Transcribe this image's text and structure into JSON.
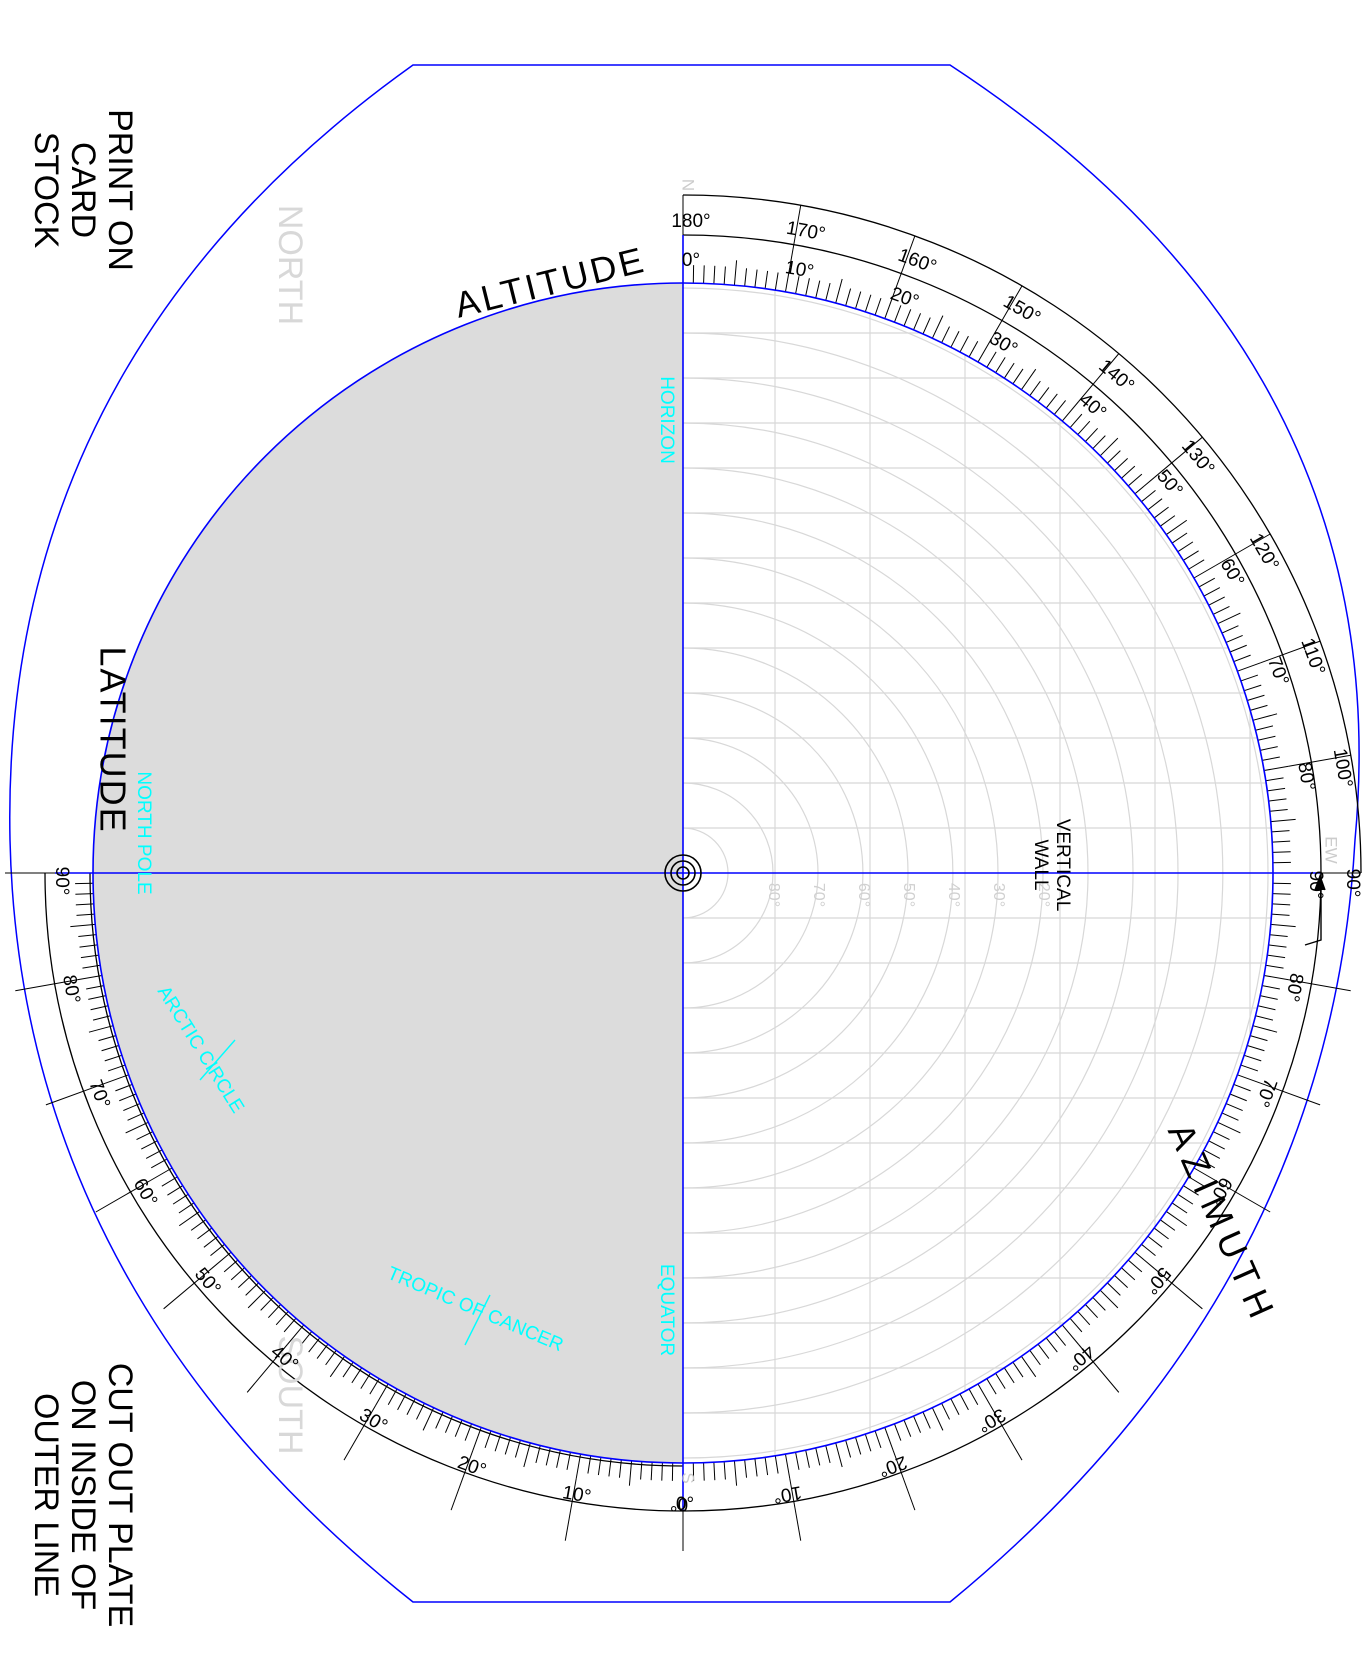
{
  "notes": {
    "print": [
      "PRINT ON",
      "CARD",
      "STOCK"
    ],
    "cut": [
      "CUT OUT PLATE",
      "ON INSIDE OF",
      "OUTER LINE"
    ]
  },
  "labels": {
    "north": "NORTH",
    "south": "SOUTH",
    "altitude": "ALTITUDE",
    "latitude": "LATITUDE",
    "azimuth": "AZIMUTH",
    "vertical_wall": [
      "VERTICAL",
      "WALL"
    ],
    "horizon": "HORIZON",
    "equator": "EQUATOR",
    "north_pole": "NORTH POLE",
    "arctic_circle": "ARCTIC CIRCLE",
    "tropic_of_cancer": "TROPIC OF CANCER",
    "compass_n": "N",
    "compass_s": "S",
    "compass_ew": "EW"
  },
  "scales": {
    "altitude_outer": [
      "180°",
      "170°",
      "160°",
      "150°",
      "140°",
      "130°",
      "120°",
      "110°",
      "100°",
      "90°"
    ],
    "altitude_inner": [
      "0°",
      "10°",
      "20°",
      "30°",
      "40°",
      "50°",
      "60°",
      "70°",
      "80°",
      "90°"
    ],
    "azimuth": [
      "80°",
      "70°",
      "60°",
      "50°",
      "40°",
      "30°",
      "20°",
      "10°",
      "0°"
    ],
    "latitude": [
      "90°",
      "80°",
      "70°",
      "60°",
      "50°",
      "40°",
      "30°",
      "20°",
      "10°",
      "0°"
    ],
    "grid": [
      "80°",
      "70°",
      "60°",
      "50°",
      "40°",
      "30°",
      "20°"
    ],
    "grid_marks": [
      80,
      70,
      60,
      50,
      40,
      30,
      20
    ]
  },
  "colors": {
    "outline": "#0000ff",
    "ink": "#000000",
    "annotation": "#00ffff",
    "grid": "#d8d8d8",
    "shade": "#dcdcdc"
  }
}
